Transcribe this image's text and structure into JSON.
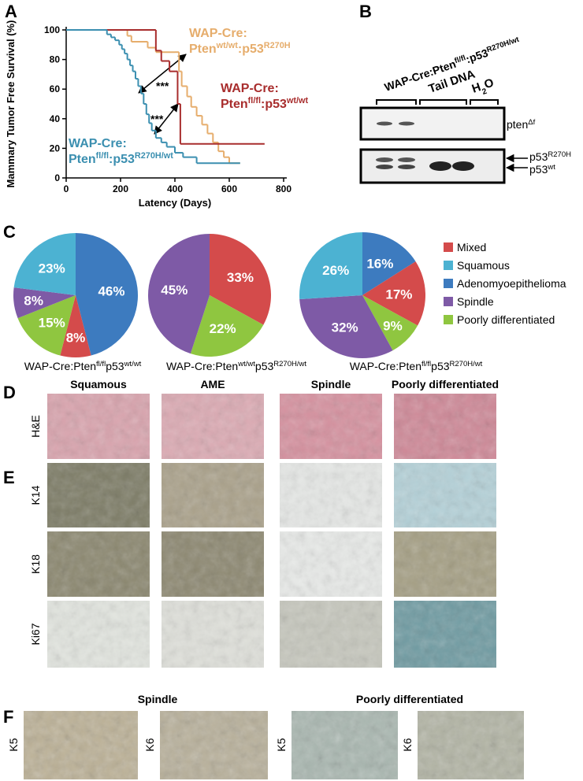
{
  "panels": [
    "A",
    "B",
    "C",
    "D",
    "E",
    "F"
  ],
  "chart_data": [
    {
      "type": "line",
      "step": true,
      "ylabel": "Mammary Tumor Free Survival (%)",
      "xlabel": "Latency (Days)",
      "xlim": [
        0,
        800
      ],
      "ylim": [
        0,
        100
      ],
      "xticks": [
        0,
        200,
        400,
        600,
        800
      ],
      "yticks": [
        0,
        20,
        40,
        60,
        80,
        100
      ],
      "series": [
        {
          "name": [
            {
              "runs": [
                "WAP-Cre:"
              ]
            },
            {
              "runs": [
                "Pten",
                "wt/wt",
                ":p53",
                "R270H"
              ]
            }
          ],
          "color": "#e6ad6c",
          "x": [
            0,
            225,
            240,
            300,
            330,
            400,
            415,
            425,
            445,
            460,
            480,
            500,
            520,
            540,
            560,
            580,
            600,
            640
          ],
          "values": [
            100,
            96,
            92,
            88,
            85,
            85,
            72,
            62,
            55,
            48,
            42,
            36,
            30,
            24,
            18,
            14,
            10,
            10
          ]
        },
        {
          "name": [
            {
              "runs": [
                "WAP-Cre:"
              ]
            },
            {
              "runs": [
                "Pten",
                "fl/fl",
                ":p53",
                "wt/wt"
              ]
            }
          ],
          "color": "#a82d2d",
          "x": [
            0,
            330,
            350,
            380,
            410,
            420,
            730
          ],
          "values": [
            100,
            86,
            79,
            72,
            50,
            23,
            23
          ]
        },
        {
          "name": [
            {
              "runs": [
                "WAP-Cre:"
              ]
            },
            {
              "runs": [
                "Pten",
                "fl/fl",
                ":p53",
                "R270H/wt"
              ]
            }
          ],
          "color": "#3b8fb0",
          "x": [
            0,
            150,
            165,
            180,
            195,
            205,
            215,
            225,
            235,
            245,
            255,
            265,
            275,
            285,
            295,
            305,
            315,
            330,
            350,
            370,
            400,
            430,
            480,
            640
          ],
          "values": [
            100,
            97,
            95,
            93,
            90,
            87,
            84,
            80,
            76,
            72,
            67,
            62,
            57,
            50,
            43,
            37,
            32,
            27,
            24,
            21,
            17,
            14,
            10,
            10
          ]
        }
      ],
      "annotations": [
        "***",
        "***"
      ]
    },
    {
      "type": "pie",
      "title": {
        "runs": [
          "WAP-Cre:Pten",
          "fl/fl",
          "p53",
          "wt/wt"
        ]
      },
      "categories": [
        "Adenomyoepithelioma",
        "Mixed",
        "Poorly differentiated",
        "Spindle",
        "Squamous"
      ],
      "values": [
        46,
        8,
        15,
        8,
        23
      ],
      "value_labels": [
        "46%",
        "8%",
        "15%",
        "8%",
        "23%"
      ]
    },
    {
      "type": "pie",
      "title": {
        "runs": [
          "WAP-Cre:Pten",
          "wt/wt",
          "p53",
          "R270H/wt"
        ]
      },
      "categories": [
        "Mixed",
        "Poorly differentiated",
        "Spindle"
      ],
      "values": [
        33,
        22,
        45
      ],
      "value_labels": [
        "33%",
        "22%",
        "45%"
      ]
    },
    {
      "type": "pie",
      "title": {
        "runs": [
          "WAP-Cre:Pten",
          "fl/fl",
          "p53",
          "R270H/wt"
        ]
      },
      "categories": [
        "Adenomyoepithelioma",
        "Mixed",
        "Poorly differentiated",
        "Spindle",
        "Squamous"
      ],
      "values": [
        16,
        17,
        9,
        32,
        26
      ],
      "value_labels": [
        "16%",
        "17%",
        "9%",
        "32%",
        "26%"
      ]
    }
  ],
  "legend": {
    "categories": [
      "Mixed",
      "Squamous",
      "Adenomyoepithelioma",
      "Spindle",
      "Poorly differentiated"
    ],
    "colors": [
      "#d44b4b",
      "#4cb2d2",
      "#3d7bbf",
      "#7e5aa6",
      "#8fc640"
    ]
  },
  "gel": {
    "title": {
      "runs": [
        "WAP-Cre:Pten",
        "fl/fl",
        ":p53",
        "R270H/wt"
      ]
    },
    "lanes": [
      {
        "runs": [
          "Tail DNA"
        ]
      },
      {
        "runs": [
          "H",
          "2",
          "O"
        ],
        "odd": "sub"
      }
    ],
    "bands": [
      {
        "runs": [
          "pten",
          "Δf"
        ]
      },
      {
        "runs": [
          "p53",
          "R270H"
        ]
      },
      {
        "runs": [
          "p53",
          "wt"
        ]
      }
    ]
  },
  "histology": {
    "columns": [
      "Squamous",
      "AME",
      "Spindle",
      "Poorly differentiated"
    ],
    "rows": [
      "H&E",
      "K14",
      "K18",
      "Ki67"
    ],
    "f_columns": [
      "Spindle",
      "Poorly differentiated"
    ],
    "f_labels": [
      "K5",
      "K6",
      "K5",
      "K6"
    ]
  }
}
